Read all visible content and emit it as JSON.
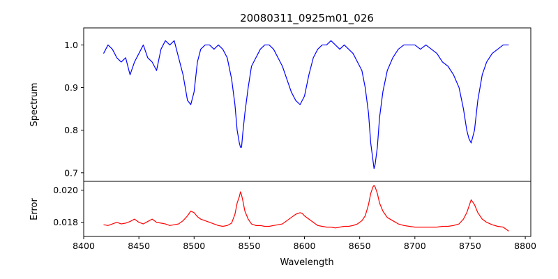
{
  "chart_data": [
    {
      "type": "line",
      "title": "20080311_0925m01_026",
      "xlabel": "",
      "ylabel": "Spectrum",
      "xlim": [
        8400,
        8805
      ],
      "ylim": [
        0.68,
        1.04
      ],
      "yticks": [
        0.7,
        0.8,
        0.9,
        1.0
      ],
      "yticks_labels": [
        "0.7",
        "0.8",
        "0.9",
        "1.0"
      ],
      "series": [
        {
          "color": "#0000ff",
          "x": [
            8418,
            8422,
            8426,
            8430,
            8434,
            8438,
            8442,
            8446,
            8450,
            8454,
            8458,
            8462,
            8466,
            8470,
            8474,
            8478,
            8482,
            8486,
            8490,
            8494,
            8497,
            8500,
            8503,
            8506,
            8510,
            8514,
            8518,
            8522,
            8526,
            8530,
            8534,
            8537,
            8539,
            8541,
            8542,
            8543,
            8544,
            8546,
            8549,
            8552,
            8556,
            8560,
            8564,
            8568,
            8572,
            8576,
            8580,
            8584,
            8588,
            8592,
            8596,
            8598,
            8600,
            8604,
            8608,
            8612,
            8616,
            8620,
            8624,
            8628,
            8632,
            8636,
            8640,
            8644,
            8648,
            8652,
            8655,
            8658,
            8660,
            8662,
            8663,
            8664,
            8666,
            8668,
            8671,
            8675,
            8680,
            8685,
            8690,
            8695,
            8700,
            8705,
            8710,
            8715,
            8720,
            8725,
            8730,
            8735,
            8740,
            8744,
            8747,
            8749,
            8751,
            8752,
            8754,
            8757,
            8761,
            8765,
            8770,
            8775,
            8780,
            8785
          ],
          "values": [
            0.98,
            1.0,
            0.99,
            0.97,
            0.96,
            0.97,
            0.93,
            0.96,
            0.98,
            1.0,
            0.97,
            0.96,
            0.94,
            0.99,
            1.01,
            1.0,
            1.01,
            0.97,
            0.93,
            0.87,
            0.86,
            0.89,
            0.96,
            0.99,
            1.0,
            1.0,
            0.99,
            1.0,
            0.99,
            0.97,
            0.92,
            0.86,
            0.8,
            0.77,
            0.76,
            0.76,
            0.79,
            0.84,
            0.9,
            0.95,
            0.97,
            0.99,
            1.0,
            1.0,
            0.99,
            0.97,
            0.95,
            0.92,
            0.89,
            0.87,
            0.86,
            0.87,
            0.88,
            0.93,
            0.97,
            0.99,
            1.0,
            1.0,
            1.01,
            1.0,
            0.99,
            1.0,
            0.99,
            0.98,
            0.96,
            0.94,
            0.9,
            0.84,
            0.77,
            0.73,
            0.71,
            0.72,
            0.76,
            0.83,
            0.89,
            0.94,
            0.97,
            0.99,
            1.0,
            1.0,
            1.0,
            0.99,
            1.0,
            0.99,
            0.98,
            0.96,
            0.95,
            0.93,
            0.9,
            0.85,
            0.8,
            0.78,
            0.77,
            0.78,
            0.8,
            0.87,
            0.93,
            0.96,
            0.98,
            0.99,
            1.0,
            1.0
          ]
        }
      ]
    },
    {
      "type": "line",
      "title": "",
      "xlabel": "Wavelength",
      "ylabel": "Error",
      "xlim": [
        8400,
        8805
      ],
      "ylim": [
        0.01712,
        0.02055
      ],
      "xticks": [
        8400,
        8450,
        8500,
        8550,
        8600,
        8650,
        8700,
        8750,
        8800
      ],
      "xticks_labels": [
        "8400",
        "8450",
        "8500",
        "8550",
        "8600",
        "8650",
        "8700",
        "8750",
        "8800"
      ],
      "yticks": [
        0.018,
        0.02
      ],
      "yticks_labels": [
        "0.018",
        "0.020"
      ],
      "series": [
        {
          "color": "#ff0000",
          "x": [
            8418,
            8422,
            8426,
            8430,
            8434,
            8438,
            8442,
            8446,
            8450,
            8454,
            8458,
            8462,
            8466,
            8470,
            8474,
            8478,
            8482,
            8486,
            8490,
            8494,
            8497,
            8500,
            8503,
            8506,
            8510,
            8514,
            8518,
            8522,
            8526,
            8530,
            8534,
            8537,
            8539,
            8541,
            8542,
            8543,
            8544,
            8546,
            8549,
            8552,
            8556,
            8560,
            8564,
            8568,
            8572,
            8576,
            8580,
            8584,
            8588,
            8592,
            8596,
            8598,
            8600,
            8604,
            8608,
            8612,
            8616,
            8620,
            8624,
            8628,
            8632,
            8636,
            8640,
            8644,
            8648,
            8652,
            8655,
            8658,
            8660,
            8662,
            8663,
            8664,
            8666,
            8668,
            8671,
            8675,
            8680,
            8685,
            8690,
            8695,
            8700,
            8705,
            8710,
            8715,
            8720,
            8725,
            8730,
            8735,
            8740,
            8744,
            8747,
            8749,
            8751,
            8752,
            8754,
            8757,
            8761,
            8765,
            8770,
            8775,
            8780,
            8785
          ],
          "values": [
            0.01785,
            0.0178,
            0.0179,
            0.018,
            0.0179,
            0.01795,
            0.01805,
            0.0182,
            0.018,
            0.0179,
            0.01805,
            0.0182,
            0.018,
            0.01795,
            0.0179,
            0.0178,
            0.01785,
            0.0179,
            0.0181,
            0.0184,
            0.0187,
            0.0186,
            0.01835,
            0.0182,
            0.0181,
            0.018,
            0.0179,
            0.0178,
            0.01775,
            0.0178,
            0.01795,
            0.0185,
            0.0192,
            0.0196,
            0.0199,
            0.0197,
            0.0194,
            0.0187,
            0.0182,
            0.0179,
            0.0178,
            0.0178,
            0.01775,
            0.01775,
            0.0178,
            0.01785,
            0.0179,
            0.0181,
            0.0183,
            0.0185,
            0.0186,
            0.01855,
            0.0184,
            0.0182,
            0.018,
            0.0178,
            0.01775,
            0.0177,
            0.0177,
            0.01765,
            0.0177,
            0.01775,
            0.01775,
            0.0178,
            0.0179,
            0.0181,
            0.0184,
            0.0191,
            0.0198,
            0.0202,
            0.0203,
            0.0202,
            0.0198,
            0.0192,
            0.0187,
            0.0183,
            0.0181,
            0.0179,
            0.0178,
            0.01775,
            0.0177,
            0.0177,
            0.0177,
            0.0177,
            0.0177,
            0.01775,
            0.01775,
            0.0178,
            0.0179,
            0.0182,
            0.0186,
            0.019,
            0.0194,
            0.0193,
            0.0191,
            0.0186,
            0.0182,
            0.018,
            0.01785,
            0.01775,
            0.0177,
            0.01745
          ]
        }
      ]
    }
  ]
}
